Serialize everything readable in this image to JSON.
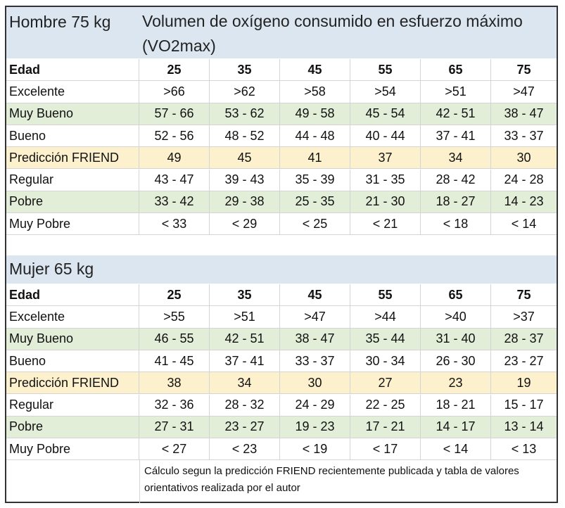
{
  "title": "Volumen de oxígeno consumido en esfuerzo máximo (VO2max)",
  "colors": {
    "header_blue": "#dce6f1",
    "green": "#e3eed9",
    "yellow": "#fdf1cd"
  },
  "tables": [
    {
      "heading": "Hombre 75 kg",
      "ages_label": "Edad",
      "ages": [
        "25",
        "35",
        "45",
        "55",
        "65",
        "75"
      ],
      "rows": [
        {
          "label": "Excelente",
          "style": "plain",
          "values": [
            ">66",
            ">62",
            ">58",
            ">54",
            ">51",
            ">47"
          ]
        },
        {
          "label": "Muy Bueno",
          "style": "green",
          "values": [
            "57 - 66",
            "53 - 62",
            "49 - 58",
            "45 - 54",
            "42 - 51",
            "38 - 47"
          ]
        },
        {
          "label": "Bueno",
          "style": "plain",
          "values": [
            "52 - 56",
            "48 - 52",
            "44 - 48",
            "40 - 44",
            "37 - 41",
            "33 - 37"
          ]
        },
        {
          "label": "Predicción FRIEND",
          "style": "yellow",
          "values": [
            "49",
            "45",
            "41",
            "37",
            "34",
            "30"
          ]
        },
        {
          "label": "Regular",
          "style": "plain",
          "values": [
            "43 - 47",
            "39 - 43",
            "35 - 39",
            "31 - 35",
            "28 - 42",
            "24 - 28"
          ]
        },
        {
          "label": "Pobre",
          "style": "green",
          "values": [
            "33 - 42",
            "29 - 38",
            "25 - 35",
            "21 - 30",
            "18 - 27",
            "14 - 23"
          ]
        },
        {
          "label": "Muy Pobre",
          "style": "plain",
          "values": [
            "< 33",
            "< 29",
            "< 25",
            "< 21",
            "< 18",
            "< 14"
          ]
        }
      ]
    },
    {
      "heading": "Mujer 65 kg",
      "ages_label": "Edad",
      "ages": [
        "25",
        "35",
        "45",
        "55",
        "65",
        "75"
      ],
      "rows": [
        {
          "label": "Excelente",
          "style": "plain",
          "values": [
            ">55",
            ">51",
            ">47",
            ">44",
            ">40",
            ">37"
          ]
        },
        {
          "label": "Muy Bueno",
          "style": "green",
          "values": [
            "46 - 55",
            "42 - 51",
            "38 - 47",
            "35 - 44",
            "31 - 40",
            "28 - 37"
          ]
        },
        {
          "label": "Bueno",
          "style": "plain",
          "values": [
            "41 - 45",
            "37 - 41",
            "33 - 37",
            "30 - 34",
            "26 - 30",
            "23 - 27"
          ]
        },
        {
          "label": "Predicción FRIEND",
          "style": "yellow",
          "values": [
            "38",
            "34",
            "30",
            "27",
            "23",
            "19"
          ]
        },
        {
          "label": "Regular",
          "style": "plain",
          "values": [
            "32 - 36",
            "28 - 32",
            "24 - 29",
            "22 - 25",
            "18 - 21",
            "15 - 17"
          ]
        },
        {
          "label": "Pobre",
          "style": "green",
          "values": [
            "27 - 31",
            "23 - 27",
            "19 - 23",
            "17 - 21",
            "14 - 17",
            "13 - 14"
          ]
        },
        {
          "label": "Muy Pobre",
          "style": "plain",
          "values": [
            "< 27",
            "< 23",
            "< 19",
            "< 17",
            "< 14",
            "< 13"
          ]
        }
      ]
    }
  ],
  "note": "Cálculo segun la predicción FRIEND recientemente publicada y tabla de valores orientativos realizada por el autor"
}
